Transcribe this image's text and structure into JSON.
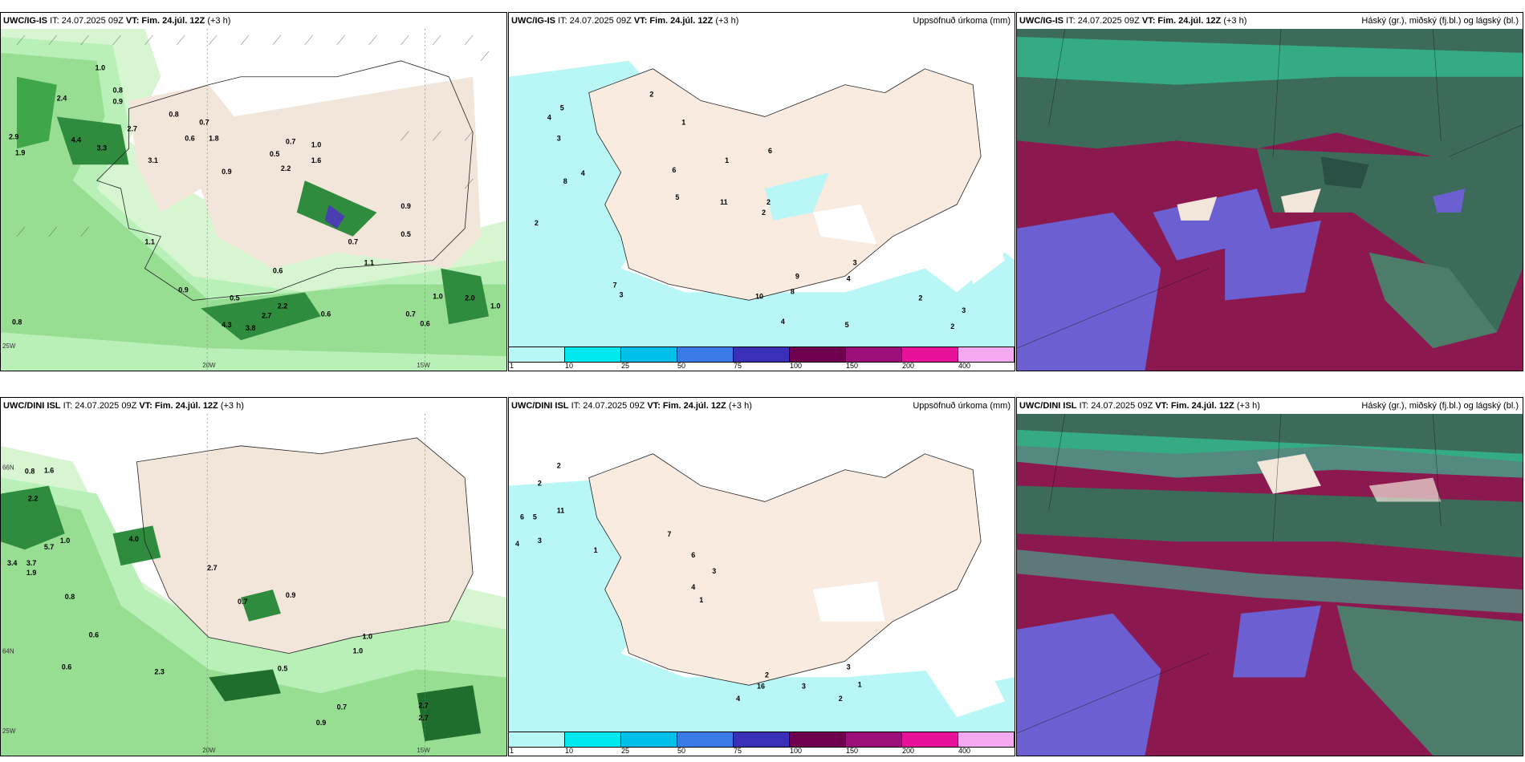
{
  "panels": [
    {
      "model": "UWC/IG-IS",
      "it": "IT: 24.07.2025 09Z",
      "vt": "VT: Fim. 24.júl. 12Z",
      "lead": "(+3 h)",
      "title": ""
    },
    {
      "model": "UWC/IG-IS",
      "it": "IT: 24.07.2025 09Z",
      "vt": "VT: Fim. 24.júl. 12Z",
      "lead": "(+3 h)",
      "title": "Uppsöfnuð úrkoma (mm)"
    },
    {
      "model": "UWC/IG-IS",
      "it": "IT: 24.07.2025 09Z",
      "vt": "VT: Fim. 24.júl. 12Z",
      "lead": "(+3 h)",
      "title": "Háský (gr.), miðský (fj.bl.) og lágský (bl.)"
    },
    {
      "model": "UWC/DINI ISL",
      "it": "IT: 24.07.2025 09Z",
      "vt": "VT: Fim. 24.júl. 12Z",
      "lead": "(+3 h)",
      "title": ""
    },
    {
      "model": "UWC/DINI ISL",
      "it": "IT: 24.07.2025 09Z",
      "vt": "VT: Fim. 24.júl. 12Z",
      "lead": "(+3 h)",
      "title": "Uppsöfnuð úrkoma (mm)"
    },
    {
      "model": "UWC/DINI ISL",
      "it": "IT: 24.07.2025 09Z",
      "vt": "VT: Fim. 24.júl. 12Z",
      "lead": "(+3 h)",
      "title": "Háský (gr.), miðský (fj.bl.) og lágský (bl.)"
    }
  ],
  "axes": {
    "lon20": "20W",
    "lon15": "15W",
    "lon25": "25W",
    "lat66": "66N",
    "lat64": "64N"
  },
  "legend": {
    "ticks": [
      "1",
      "10",
      "25",
      "50",
      "75",
      "100",
      "150",
      "200",
      "400"
    ],
    "colors": [
      "#b9f7f7",
      "#00e8f0",
      "#00bfe8",
      "#3a7be8",
      "#3a2fb8",
      "#6e004f",
      "#9c0f7b",
      "#e8129a",
      "#f5a9f0"
    ]
  },
  "colors": {
    "land": "#f2e5da",
    "rain_light": "#b8f0b8",
    "rain_mid": "#5fbf5f",
    "rain_heavy": "#1f6e2e",
    "precip_light": "#b9f7f7",
    "cloud_high": "#8c1850",
    "cloud_mid": "#3d6b5a",
    "cloud_low": "#6b5fd1"
  },
  "labels": {
    "p1": [
      "1.0",
      "0.8",
      "0.9",
      "2.4",
      "2.9",
      "1.9",
      "4.4",
      "3.3",
      "2.7",
      "3.1",
      "0.6",
      "1.8",
      "0.8",
      "0.7",
      "0.5",
      "1.0",
      "0.7",
      "2.2",
      "0.9",
      "1.6",
      "0.5",
      "0.9",
      "0.6",
      "1.1",
      "0.7",
      "1.1",
      "0.9",
      "0.6",
      "0.5",
      "0.7",
      "1.0",
      "2.0",
      "0.8",
      "0.6",
      "4.3",
      "3.8",
      "2.7",
      "2.2",
      "1.0"
    ],
    "p2": [
      "2",
      "1",
      "4",
      "5",
      "3",
      "8",
      "11",
      "5",
      "6",
      "2",
      "4",
      "3",
      "7",
      "2",
      "1",
      "4",
      "8",
      "5",
      "9",
      "4",
      "10",
      "6",
      "2",
      "3",
      "2",
      "2",
      "3"
    ],
    "p4": [
      "0.8",
      "1.9",
      "2.2",
      "3.4",
      "3.7",
      "5.7",
      "1.0",
      "4.0",
      "0.8",
      "1.6",
      "2.7",
      "0.9",
      "0.6",
      "0.7",
      "1.0",
      "0.5",
      "2.3",
      "0.6",
      "1.0",
      "2.7",
      "0.9",
      "0.7",
      "2.7"
    ],
    "p5": [
      "2",
      "1",
      "6",
      "5",
      "11",
      "4",
      "3",
      "2",
      "7",
      "6",
      "1",
      "4",
      "3",
      "2",
      "16",
      "3",
      "4",
      "2",
      "3",
      "1"
    ]
  }
}
